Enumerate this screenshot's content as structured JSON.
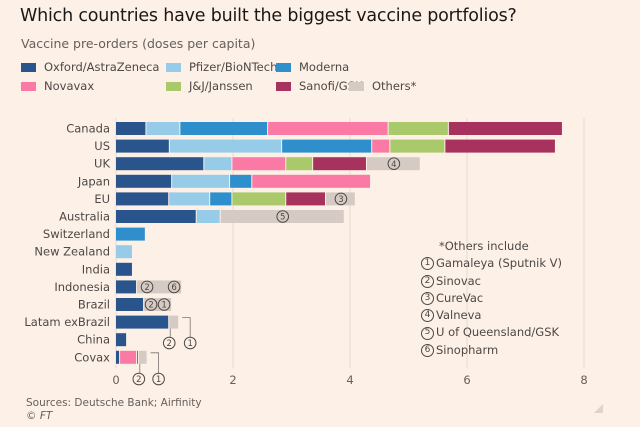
{
  "header": {
    "title": "Which countries have built the biggest vaccine portfolios?",
    "subtitle": "Vaccine pre-orders (doses per capita)"
  },
  "legend": [
    {
      "name": "Oxford/AstraZeneca",
      "color": "#2a558c"
    },
    {
      "name": "Pfizer/BioNTech",
      "color": "#96cce8"
    },
    {
      "name": "Moderna",
      "color": "#2e8fcc"
    },
    {
      "name": "Novavax",
      "color": "#fa7aa5"
    },
    {
      "name": "J&J/Janssen",
      "color": "#a9c96a"
    },
    {
      "name": "Sanofi/GSK",
      "color": "#a8325e"
    },
    {
      "name": "Others*",
      "color": "#d6cbc4"
    }
  ],
  "notes": {
    "title": "*Others include",
    "items": [
      {
        "num": "1",
        "label": "Gamaleya (Sputnik V)"
      },
      {
        "num": "2",
        "label": "Sinovac"
      },
      {
        "num": "3",
        "label": "CureVac"
      },
      {
        "num": "4",
        "label": "Valneva"
      },
      {
        "num": "5",
        "label": "U of Queensland/GSK"
      },
      {
        "num": "6",
        "label": "Sinopharm"
      }
    ]
  },
  "footer": {
    "source": "Sources: Deutsche Bank; Airfinity",
    "copyright": "© FT"
  },
  "chart_data": {
    "type": "bar",
    "orientation": "horizontal",
    "stacked": true,
    "title": "Which countries have built the biggest vaccine portfolios?",
    "subtitle": "Vaccine pre-orders (doses per capita)",
    "xlabel": "",
    "ylabel": "",
    "xlim": [
      0,
      8
    ],
    "xticks": [
      0,
      2,
      4,
      6,
      8
    ],
    "grid": true,
    "legend_position": "top",
    "categories": [
      "Canada",
      "US",
      "UK",
      "Japan",
      "EU",
      "Australia",
      "Switzerland",
      "New Zealand",
      "India",
      "Indonesia",
      "Brazil",
      "Latam exBrazil",
      "China",
      "Covax"
    ],
    "series": [
      {
        "name": "Oxford/AstraZeneca",
        "values": [
          0.52,
          0.92,
          1.51,
          0.96,
          0.91,
          1.38,
          0,
          0,
          0.29,
          0.36,
          0.48,
          0.91,
          0.19,
          0.07
        ]
      },
      {
        "name": "Pfizer/BioNTech",
        "values": [
          0.58,
          1.92,
          0.48,
          0.99,
          0.7,
          0.41,
          0,
          0.29,
          0,
          0,
          0,
          0,
          0,
          0
        ]
      },
      {
        "name": "Moderna",
        "values": [
          1.5,
          1.54,
          0,
          0.38,
          0.38,
          0,
          0.51,
          0,
          0,
          0,
          0,
          0,
          0,
          0
        ]
      },
      {
        "name": "Novavax",
        "values": [
          2.06,
          0.31,
          0.92,
          2.03,
          0,
          0,
          0,
          0,
          0,
          0,
          0,
          0,
          0,
          0.29
        ]
      },
      {
        "name": "J&J/Janssen",
        "values": [
          1.03,
          0.94,
          0.46,
          0,
          0.92,
          0,
          0,
          0,
          0,
          0,
          0,
          0,
          0,
          0
        ]
      },
      {
        "name": "Sanofi/GSK",
        "values": [
          1.95,
          1.89,
          0.92,
          0,
          0.68,
          0,
          0,
          0,
          0,
          0,
          0,
          0,
          0,
          0.03
        ]
      },
      {
        "name": "Others*",
        "values": [
          0,
          0,
          0.92,
          0,
          0.51,
          2.12,
          0,
          0,
          0,
          0.77,
          0.48,
          0.17,
          0,
          0.15
        ]
      }
    ],
    "annotations": [
      {
        "category": "UK",
        "markers": [
          "4"
        ],
        "placement": "inside"
      },
      {
        "category": "EU",
        "markers": [
          "3"
        ],
        "placement": "inside"
      },
      {
        "category": "Australia",
        "markers": [
          "5"
        ],
        "placement": "inside"
      },
      {
        "category": "Indonesia",
        "markers": [
          "2",
          "6"
        ],
        "placement": "inside"
      },
      {
        "category": "Brazil",
        "markers": [
          "2",
          "1"
        ],
        "placement": "inside"
      },
      {
        "category": "Latam exBrazil",
        "markers": [
          "2",
          "1"
        ],
        "placement": "below"
      },
      {
        "category": "Covax",
        "markers": [
          "2",
          "1"
        ],
        "placement": "below"
      }
    ]
  }
}
